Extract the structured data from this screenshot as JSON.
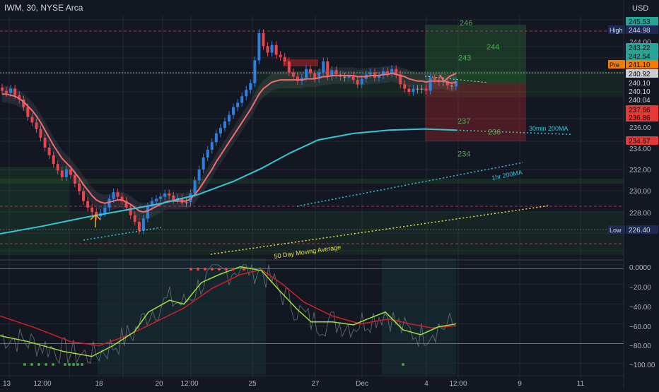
{
  "header": {
    "title": "IWM, 30, NYSE Arca",
    "currency": "USD"
  },
  "colors": {
    "background": "#131722",
    "grid": "#232834",
    "candle_up": "#2f7fe0",
    "candle_down": "#e8464f",
    "candle_neutral": "#8a8f99",
    "ema": "#f26d6d",
    "ma_30min_200": "#35c6d6",
    "ma_1hr_200": "#35c6d6",
    "ma_50day": "#e6e04a",
    "zone_green": "#2e7d32",
    "zone_red": "#c62828",
    "osc_fast": "#9be23c",
    "osc_slow": "#d0202a",
    "osc_raw": "#7a7f88",
    "marker_arrow": "#f0a830",
    "level_text": "#4caf50"
  },
  "chart_data": {
    "type": "line",
    "symbol": "IWM",
    "interval": "30",
    "exchange": "NYSE Arca",
    "x_axis": {
      "tick_labels": [
        "13",
        "12:00",
        "18",
        "12:00",
        "20",
        "12:00",
        "25",
        "27",
        "Dec",
        "4",
        "12:00",
        "9",
        "11"
      ]
    },
    "y_axis": {
      "range": [
        224.4,
        246.6
      ],
      "tick_labels": [
        "244.00",
        "236.00",
        "234.00",
        "232.00",
        "230.00",
        "228.00"
      ]
    },
    "price_badges": [
      {
        "label": "",
        "value": "245.53",
        "style": "green"
      },
      {
        "label": "High",
        "value": "244.98",
        "style": "navy"
      },
      {
        "label": "",
        "value": "243.22",
        "style": "green"
      },
      {
        "label": "",
        "value": "242.54",
        "style": "green"
      },
      {
        "label": "Pre",
        "value": "241.10",
        "style": "orange"
      },
      {
        "label": "",
        "value": "240.92",
        "style": "gray"
      },
      {
        "label": "",
        "value": "240.10",
        "style": "dark"
      },
      {
        "label": "",
        "value": "240.10",
        "style": "dark"
      },
      {
        "label": "",
        "value": "240.04",
        "style": "dark"
      },
      {
        "label": "",
        "value": "237.66",
        "style": "red"
      },
      {
        "label": "",
        "value": "236.86",
        "style": "red"
      },
      {
        "label": "",
        "value": "234.67",
        "style": "red"
      },
      {
        "label": "Low",
        "value": "226.40",
        "style": "navy"
      }
    ],
    "levels": [
      {
        "text": "246",
        "price": 245.95
      },
      {
        "text": "244",
        "price": 243.75
      },
      {
        "text": "243",
        "price": 242.75
      },
      {
        "text": "237",
        "price": 236.95
      },
      {
        "text": "236",
        "price": 235.95
      },
      {
        "text": "234",
        "price": 233.95
      }
    ],
    "annotations": [
      "30min 200MA",
      "1hr 200MA",
      "50 Day Moving Average"
    ],
    "candles_close": [
      239.7,
      239.5,
      239.9,
      239.3,
      238.9,
      238.2,
      237.3,
      236.8,
      236.2,
      235.4,
      234.5,
      233.8,
      233.0,
      232.4,
      231.8,
      232.5,
      232.0,
      231.2,
      230.5,
      229.6,
      229.0,
      228.6,
      228.2,
      228.5,
      229.0,
      229.8,
      230.4,
      230.0,
      229.6,
      229.0,
      228.3,
      227.7,
      226.9,
      228.0,
      229.1,
      229.6,
      229.8,
      230.0,
      230.3,
      230.1,
      229.7,
      229.9,
      229.4,
      229.5,
      230.3,
      231.5,
      232.5,
      233.6,
      234.3,
      235.0,
      235.8,
      236.3,
      236.9,
      237.5,
      238.2,
      238.6,
      239.2,
      239.8,
      240.4,
      242.5,
      245.0,
      243.8,
      243.2,
      243.9,
      243.0,
      242.8,
      242.4,
      241.4,
      241.0,
      240.6,
      240.9,
      241.7,
      241.3,
      240.8,
      241.4,
      242.4,
      241.0,
      241.6,
      241.2,
      241.0,
      240.9,
      241.1,
      240.7,
      240.3,
      240.8,
      241.2,
      241.4,
      240.9,
      241.1,
      241.5,
      241.3,
      241.7,
      241.2,
      240.3,
      239.9,
      239.6,
      239.9,
      239.8,
      239.9,
      239.7,
      240.9,
      240.7,
      240.5,
      240.6,
      240.2,
      240.1,
      240.6
    ],
    "ema_series": [
      239.4,
      239.4,
      239.3,
      239.2,
      239.0,
      238.7,
      238.3,
      237.9,
      237.4,
      236.8,
      236.1,
      235.4,
      234.7,
      234.1,
      233.5,
      233.1,
      232.7,
      232.2,
      231.7,
      231.1,
      230.6,
      230.1,
      229.7,
      229.5,
      229.4,
      229.5,
      229.6,
      229.7,
      229.7,
      229.5,
      229.3,
      229.0,
      228.7,
      228.6,
      228.7,
      228.9,
      229.1,
      229.3,
      229.5,
      229.6,
      229.6,
      229.6,
      229.6,
      229.6,
      229.8,
      230.2,
      230.7,
      231.3,
      231.9,
      232.5,
      233.2,
      233.8,
      234.4,
      235.0,
      235.6,
      236.2,
      236.8,
      237.4,
      238.0,
      238.7,
      239.4,
      239.9,
      240.2,
      240.5,
      240.6,
      240.7,
      240.7,
      240.7,
      240.7,
      240.7,
      240.7,
      240.8,
      240.8,
      240.8,
      240.9,
      241.0,
      241.0,
      241.1,
      241.1,
      241.1,
      241.1,
      241.1,
      241.1,
      241.0,
      241.0,
      241.0,
      241.1,
      241.1,
      241.1,
      241.2,
      241.2,
      241.3,
      241.2,
      241.1,
      241.0,
      240.8,
      240.7,
      240.6,
      240.6,
      240.5,
      240.6,
      240.6,
      240.6,
      240.6,
      240.5,
      240.4,
      240.5
    ],
    "ma200_30min": [
      [
        0,
        226.6
      ],
      [
        60,
        227.3
      ],
      [
        120,
        228.1
      ],
      [
        180,
        228.8
      ],
      [
        230,
        229.4
      ],
      [
        280,
        230.2
      ],
      [
        330,
        231.4
      ],
      [
        370,
        232.6
      ],
      [
        410,
        234.0
      ],
      [
        450,
        235.2
      ],
      [
        500,
        235.8
      ],
      [
        550,
        236.1
      ],
      [
        600,
        236.2
      ],
      [
        645,
        236.1
      ]
    ],
    "oscillator": {
      "y_range": [
        -104,
        2
      ],
      "tick_labels": [
        "0.0000",
        "−20.00",
        "−40.00",
        "−60.00",
        "−80.00",
        "−100.00"
      ],
      "fast": [
        [
          0,
          -72
        ],
        [
          40,
          -78
        ],
        [
          90,
          -88
        ],
        [
          130,
          -93
        ],
        [
          160,
          -82
        ],
        [
          190,
          -68
        ],
        [
          210,
          -48
        ],
        [
          240,
          -36
        ],
        [
          260,
          -40
        ],
        [
          285,
          -18
        ],
        [
          310,
          -10
        ],
        [
          340,
          -2
        ],
        [
          370,
          -6
        ],
        [
          395,
          -26
        ],
        [
          420,
          -45
        ],
        [
          440,
          -58
        ],
        [
          470,
          -58
        ],
        [
          500,
          -61
        ],
        [
          520,
          -55
        ],
        [
          545,
          -48
        ],
        [
          570,
          -66
        ],
        [
          595,
          -71
        ],
        [
          620,
          -63
        ],
        [
          645,
          -60
        ]
      ],
      "slow": [
        [
          0,
          -52
        ],
        [
          50,
          -64
        ],
        [
          100,
          -78
        ],
        [
          140,
          -82
        ],
        [
          180,
          -72
        ],
        [
          220,
          -58
        ],
        [
          260,
          -44
        ],
        [
          300,
          -24
        ],
        [
          340,
          -10
        ],
        [
          370,
          -5
        ],
        [
          400,
          -20
        ],
        [
          430,
          -38
        ],
        [
          470,
          -52
        ],
        [
          510,
          -60
        ],
        [
          550,
          -55
        ],
        [
          580,
          -60
        ],
        [
          610,
          -64
        ],
        [
          645,
          -62
        ]
      ]
    }
  }
}
